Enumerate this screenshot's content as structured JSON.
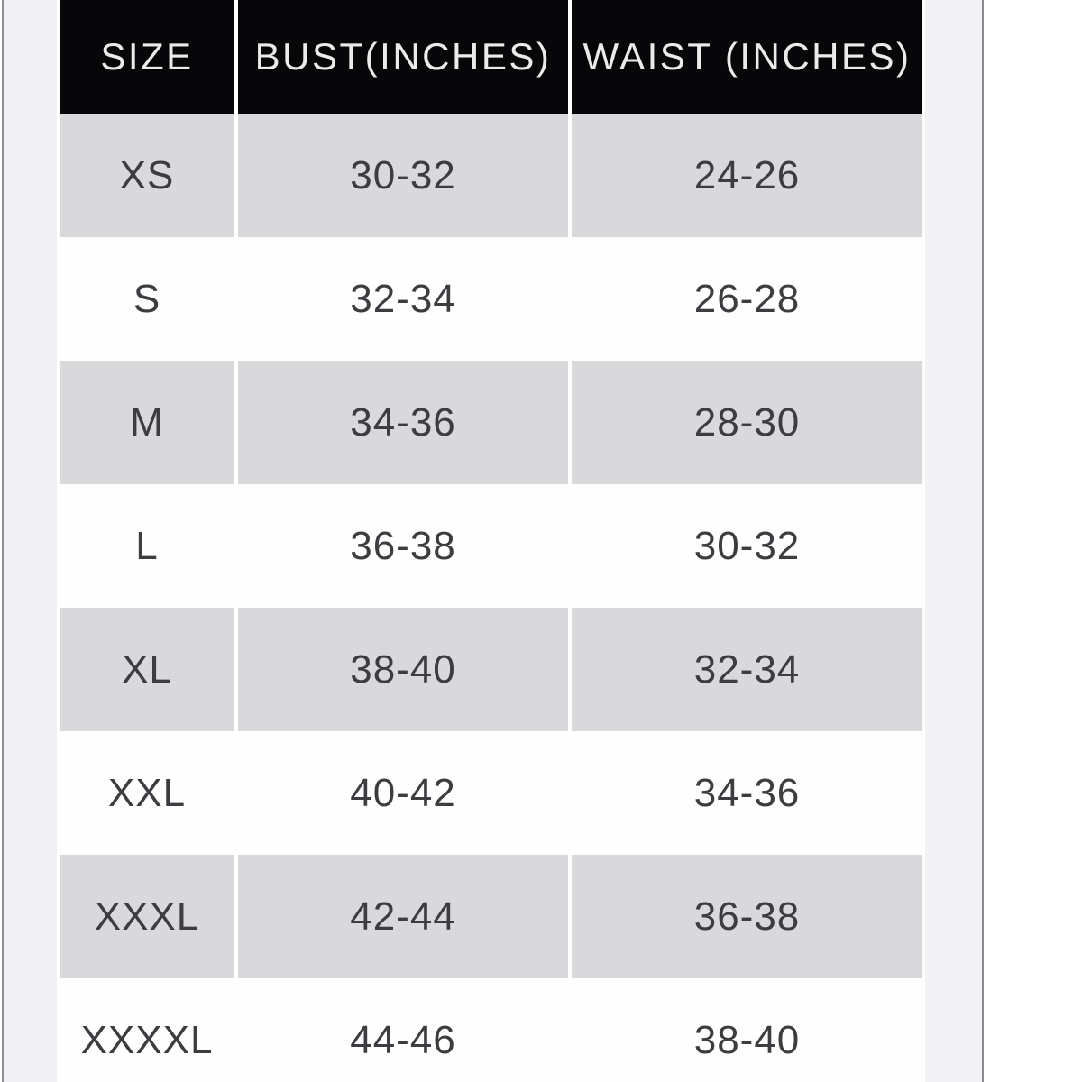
{
  "frame": {
    "outer_bg": "#ffffff",
    "left_line_color": "#8d8d91",
    "right_line_color": "#8a8a8f",
    "left_margin_color": "#f1f0f2",
    "right_margin_color": "#f3f2f4"
  },
  "table": {
    "header": {
      "bg": "#070609",
      "text_color": "#ebebeb",
      "columns": [
        "SIZE",
        "BUST(INCHES)",
        "WAIST (INCHES)"
      ]
    },
    "colors": {
      "row_gray": "#d9d8da",
      "row_white": "#fefefe",
      "text": "#3d3d41",
      "separator": "#ffffff"
    },
    "rows": [
      {
        "size": "XS",
        "bust": "30-32",
        "waist": "24-26"
      },
      {
        "size": "S",
        "bust": "32-34",
        "waist": "26-28"
      },
      {
        "size": "M",
        "bust": "34-36",
        "waist": "28-30"
      },
      {
        "size": "L",
        "bust": "36-38",
        "waist": "30-32"
      },
      {
        "size": "XL",
        "bust": "38-40",
        "waist": "32-34"
      },
      {
        "size": "XXL",
        "bust": "40-42",
        "waist": "34-36"
      },
      {
        "size": "XXXL",
        "bust": "42-44",
        "waist": "36-38"
      },
      {
        "size": "XXXXL",
        "bust": "44-46",
        "waist": "38-40"
      }
    ]
  }
}
